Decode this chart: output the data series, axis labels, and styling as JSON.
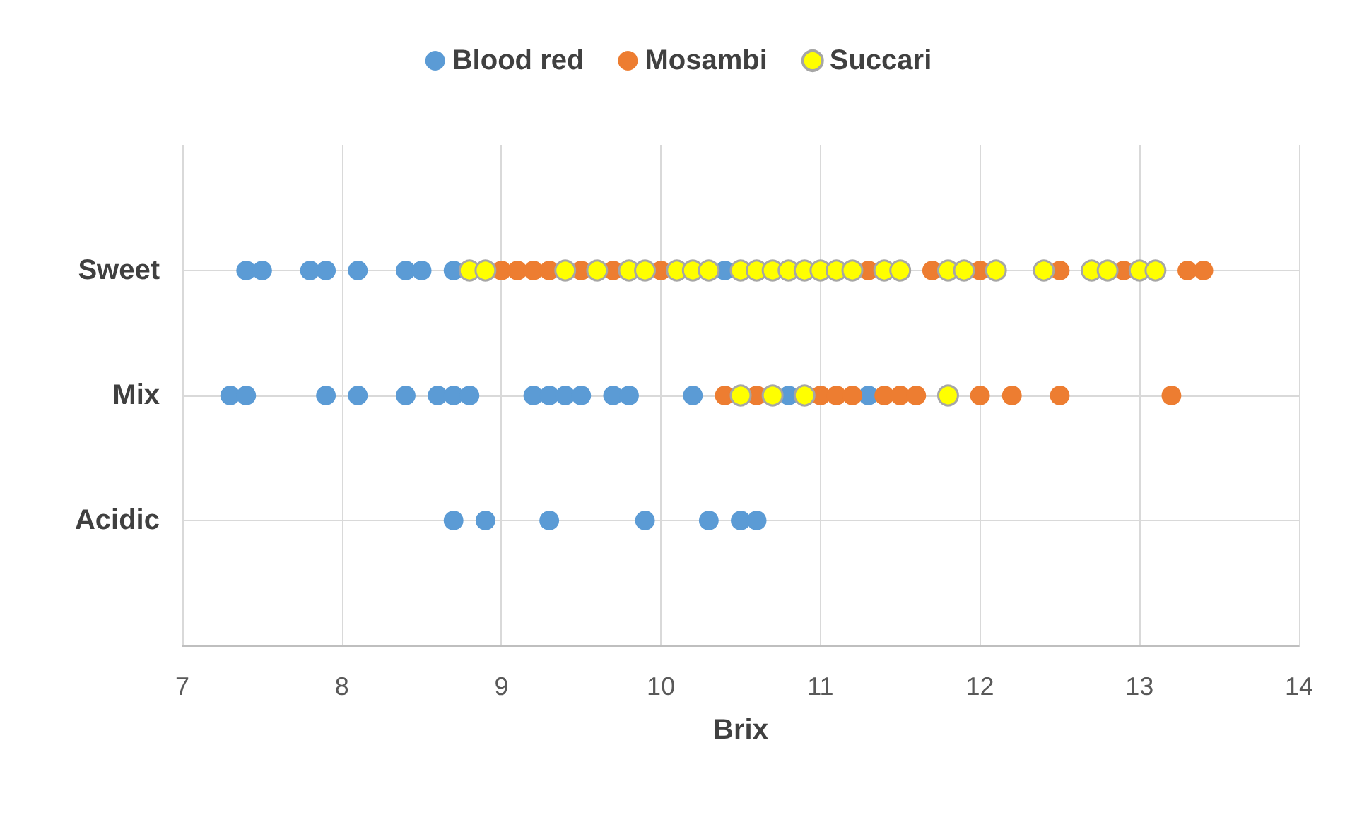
{
  "chart_data": {
    "type": "scatter",
    "orientation": "horizontal",
    "xlabel": "Brix",
    "xlim": [
      7,
      14
    ],
    "xticks": [
      7,
      8,
      9,
      10,
      11,
      12,
      13,
      14
    ],
    "categories": [
      null,
      "Sweet",
      "Mix",
      "Acidic",
      null
    ],
    "grid": true,
    "legend": "top",
    "marker": "circle",
    "series": [
      {
        "name": "Blood red",
        "color": "#5b9bd5",
        "x": [
          "Sweet",
          "Sweet",
          "Sweet",
          "Sweet",
          "Sweet",
          "Sweet",
          "Sweet",
          "Sweet",
          "Sweet",
          "Mix",
          "Mix",
          "Mix",
          "Mix",
          "Mix",
          "Mix",
          "Mix",
          "Mix",
          "Mix",
          "Mix",
          "Mix",
          "Mix",
          "Mix",
          "Mix",
          "Mix",
          "Mix",
          "Mix",
          "Acidic",
          "Acidic",
          "Acidic",
          "Acidic",
          "Acidic",
          "Acidic",
          "Acidic"
        ],
        "values": [
          7.4,
          7.5,
          7.8,
          7.9,
          8.1,
          8.4,
          8.5,
          8.7,
          10.4,
          7.3,
          7.4,
          7.9,
          8.1,
          8.4,
          8.6,
          8.7,
          8.8,
          9.2,
          9.3,
          9.4,
          9.5,
          9.7,
          9.8,
          10.2,
          10.8,
          11.3,
          8.7,
          8.9,
          9.3,
          9.9,
          10.3,
          10.5,
          10.6
        ]
      },
      {
        "name": "Mosambi",
        "color": "#ed7d31",
        "x": [
          "Sweet",
          "Sweet",
          "Sweet",
          "Sweet",
          "Sweet",
          "Sweet",
          "Sweet",
          "Sweet",
          "Sweet",
          "Sweet",
          "Sweet",
          "Sweet",
          "Sweet",
          "Sweet",
          "Mix",
          "Mix",
          "Mix",
          "Mix",
          "Mix",
          "Mix",
          "Mix",
          "Mix",
          "Mix",
          "Mix",
          "Mix",
          "Mix"
        ],
        "values": [
          9.0,
          9.1,
          9.2,
          9.3,
          9.5,
          9.7,
          10.0,
          11.3,
          11.7,
          12.0,
          12.5,
          12.9,
          13.3,
          13.4,
          10.4,
          10.6,
          11.0,
          11.1,
          11.2,
          11.4,
          11.5,
          11.6,
          12.0,
          12.2,
          12.5,
          13.2
        ]
      },
      {
        "name": "Succari",
        "color": "#ffff00",
        "x": [
          "Sweet",
          "Sweet",
          "Sweet",
          "Sweet",
          "Sweet",
          "Sweet",
          "Sweet",
          "Sweet",
          "Sweet",
          "Sweet",
          "Sweet",
          "Sweet",
          "Sweet",
          "Sweet",
          "Sweet",
          "Sweet",
          "Sweet",
          "Sweet",
          "Sweet",
          "Sweet",
          "Sweet",
          "Sweet",
          "Sweet",
          "Sweet",
          "Sweet",
          "Sweet",
          "Sweet",
          "Mix",
          "Mix",
          "Mix",
          "Mix"
        ],
        "values": [
          8.8,
          8.9,
          9.4,
          9.6,
          9.8,
          9.9,
          10.1,
          10.2,
          10.3,
          10.5,
          10.6,
          10.7,
          10.8,
          10.9,
          11.0,
          11.1,
          11.2,
          11.4,
          11.5,
          11.8,
          11.9,
          12.1,
          12.4,
          12.7,
          12.8,
          13.0,
          13.1,
          10.5,
          10.7,
          10.9,
          11.8
        ]
      }
    ]
  }
}
